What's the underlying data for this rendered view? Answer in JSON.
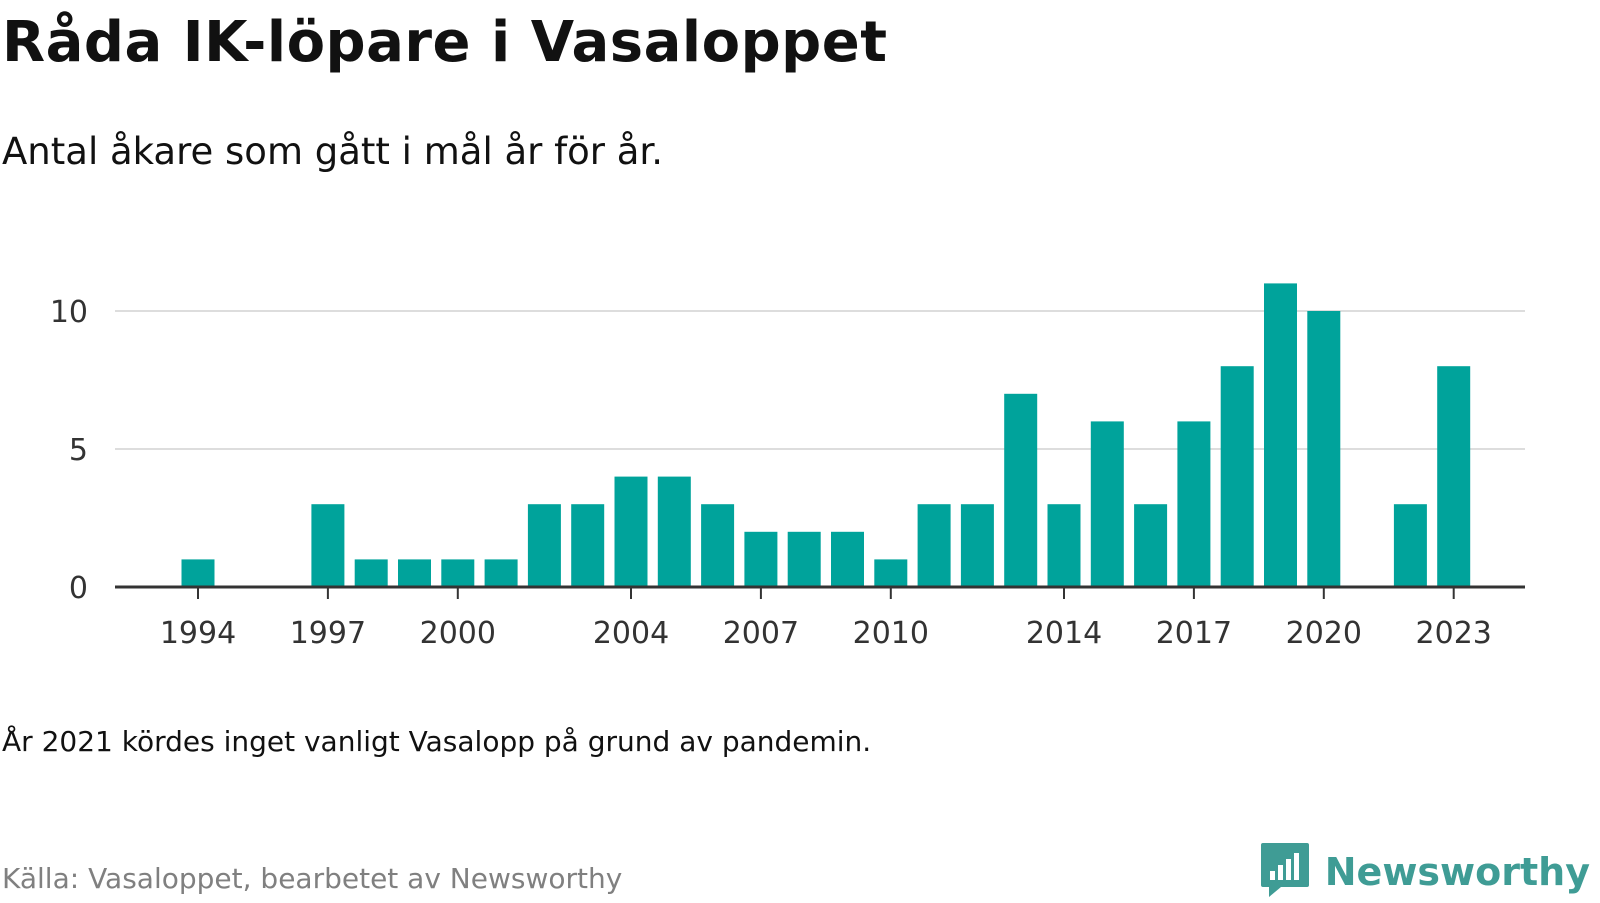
{
  "title": "Råda IK-löpare i Vasaloppet",
  "subtitle": "Antal åkare som gått i mål år för år.",
  "note": "År 2021 kördes inget vanligt Vasalopp på grund av pandemin.",
  "source": "Källa: Vasaloppet, bearbetet av Newsworthy",
  "brand": {
    "name": "Newsworthy",
    "icon": "bar-chart-speech-bubble-icon",
    "color": "#3f9c95"
  },
  "chart_data": {
    "type": "bar",
    "title": "",
    "xlabel": "",
    "ylabel": "",
    "bar_color": "#00a39b",
    "grid": true,
    "ylim": [
      0,
      12
    ],
    "yticks": [
      0,
      5,
      10
    ],
    "xticks": [
      1994,
      1997,
      2000,
      2004,
      2007,
      2010,
      2014,
      2017,
      2020,
      2023
    ],
    "categories": [
      1994,
      1995,
      1996,
      1997,
      1998,
      1999,
      2000,
      2001,
      2002,
      2003,
      2004,
      2005,
      2006,
      2007,
      2008,
      2009,
      2010,
      2011,
      2012,
      2013,
      2014,
      2015,
      2016,
      2017,
      2018,
      2019,
      2020,
      2021,
      2022,
      2023
    ],
    "values": [
      1,
      0,
      0,
      3,
      1,
      1,
      1,
      1,
      3,
      3,
      4,
      4,
      3,
      2,
      2,
      2,
      1,
      3,
      3,
      7,
      3,
      6,
      3,
      6,
      8,
      11,
      10,
      0,
      3,
      8
    ]
  }
}
